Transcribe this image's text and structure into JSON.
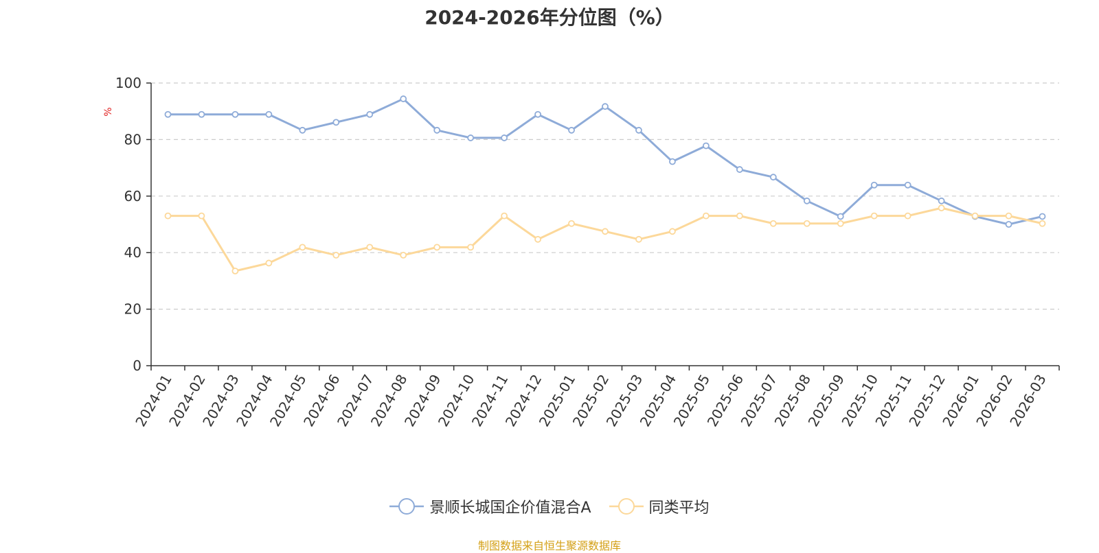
{
  "chart_data": {
    "type": "line",
    "title": "2024-2026年分位图（%）",
    "ylabel": "%",
    "xlabel": "",
    "ylim": [
      0,
      100
    ],
    "yticks": [
      0,
      20,
      40,
      60,
      80,
      100
    ],
    "grid": true,
    "legend_position": "bottom",
    "categories": [
      "2024-01",
      "2024-02",
      "2024-03",
      "2024-04",
      "2024-05",
      "2024-06",
      "2024-07",
      "2024-08",
      "2024-09",
      "2024-10",
      "2024-11",
      "2024-12",
      "2025-01",
      "2025-02",
      "2025-03",
      "2025-04",
      "2025-05",
      "2025-06",
      "2025-07",
      "2025-08",
      "2025-09",
      "2025-10",
      "2025-11",
      "2025-12",
      "2026-01",
      "2026-02",
      "2026-03"
    ],
    "series": [
      {
        "name": "景顺长城国企价值混合A",
        "color": "#8eabd8",
        "values": [
          88.9,
          88.9,
          88.9,
          88.9,
          83.3,
          86.1,
          88.9,
          94.4,
          83.3,
          80.6,
          80.6,
          88.9,
          83.3,
          91.7,
          83.3,
          72.2,
          77.8,
          69.4,
          66.7,
          58.3,
          52.8,
          63.9,
          63.9,
          58.3,
          52.8,
          50.0,
          52.8
        ]
      },
      {
        "name": "同类平均",
        "color": "#fcd89a",
        "values": [
          53.0,
          53.0,
          33.5,
          36.3,
          41.9,
          39.1,
          41.9,
          39.1,
          41.9,
          41.9,
          53.0,
          44.7,
          50.3,
          47.5,
          44.7,
          47.5,
          53.0,
          53.0,
          50.3,
          50.3,
          50.3,
          53.0,
          53.0,
          55.8,
          53.0,
          53.0,
          50.3
        ]
      }
    ]
  },
  "source_note": "制图数据来自恒生聚源数据库"
}
